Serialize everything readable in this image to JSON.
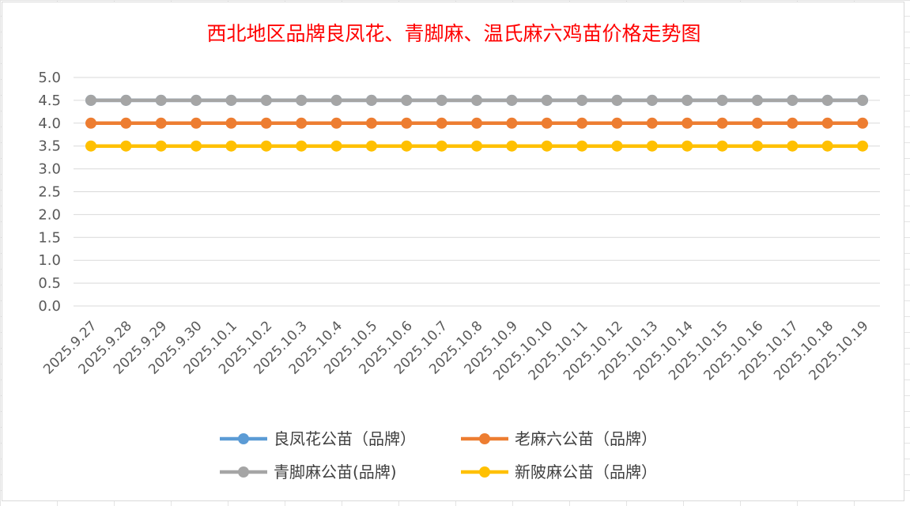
{
  "chart_data": {
    "type": "line",
    "title": "西北地区品牌良凤花、青脚麻、温氏麻六鸡苗价格走势图",
    "xlabel": "",
    "ylabel": "",
    "ylim": [
      0,
      5
    ],
    "yticks": [
      "0.0",
      "0.5",
      "1.0",
      "1.5",
      "2.0",
      "2.5",
      "3.0",
      "3.5",
      "4.0",
      "4.5",
      "5.0"
    ],
    "grid": true,
    "legend_position": "bottom",
    "categories": [
      "2025.9.27",
      "2025.9.28",
      "2025.9.29",
      "2025.9.30",
      "2025.10.1",
      "2025.10.2",
      "2025.10.3",
      "2025.10.4",
      "2025.10.5",
      "2025.10.6",
      "2025.10.7",
      "2025.10.8",
      "2025.10.9",
      "2025.10.10",
      "2025.10.11",
      "2025.10.12",
      "2025.10.13",
      "2025.10.14",
      "2025.10.15",
      "2025.10.16",
      "2025.10.17",
      "2025.10.18",
      "2025.10.19"
    ],
    "series": [
      {
        "name": "良凤花公苗（品牌）",
        "color": "#5b9bd5",
        "values": [
          4.5,
          4.5,
          4.5,
          4.5,
          4.5,
          4.5,
          4.5,
          4.5,
          4.5,
          4.5,
          4.5,
          4.5,
          4.5,
          4.5,
          4.5,
          4.5,
          4.5,
          4.5,
          4.5,
          4.5,
          4.5,
          4.5,
          4.5
        ]
      },
      {
        "name": "老麻六公苗（品牌）",
        "color": "#ed7d31",
        "values": [
          4.0,
          4.0,
          4.0,
          4.0,
          4.0,
          4.0,
          4.0,
          4.0,
          4.0,
          4.0,
          4.0,
          4.0,
          4.0,
          4.0,
          4.0,
          4.0,
          4.0,
          4.0,
          4.0,
          4.0,
          4.0,
          4.0,
          4.0
        ]
      },
      {
        "name": "青脚麻公苗(品牌)",
        "color": "#a5a5a5",
        "values": [
          4.5,
          4.5,
          4.5,
          4.5,
          4.5,
          4.5,
          4.5,
          4.5,
          4.5,
          4.5,
          4.5,
          4.5,
          4.5,
          4.5,
          4.5,
          4.5,
          4.5,
          4.5,
          4.5,
          4.5,
          4.5,
          4.5,
          4.5
        ]
      },
      {
        "name": "新陂麻公苗（品牌）",
        "color": "#ffc000",
        "values": [
          3.5,
          3.5,
          3.5,
          3.5,
          3.5,
          3.5,
          3.5,
          3.5,
          3.5,
          3.5,
          3.5,
          3.5,
          3.5,
          3.5,
          3.5,
          3.5,
          3.5,
          3.5,
          3.5,
          3.5,
          3.5,
          3.5,
          3.5
        ]
      }
    ]
  }
}
